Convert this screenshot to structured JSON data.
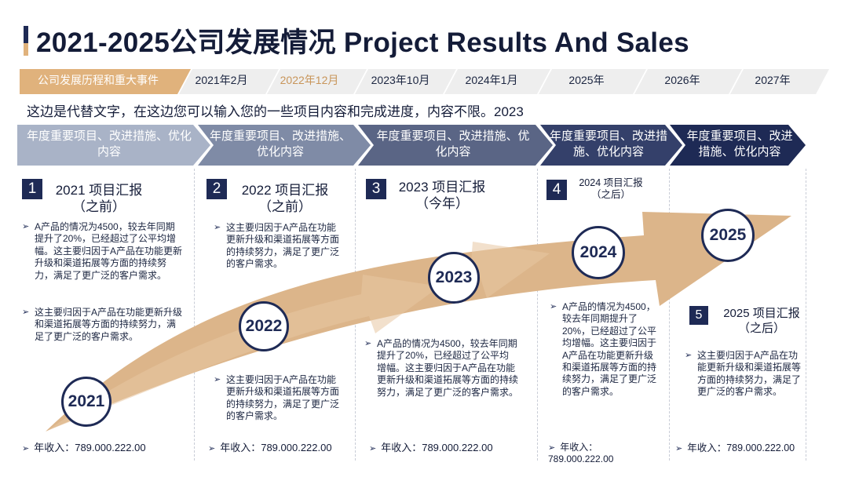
{
  "title": "2021-2025公司发展情况 Project Results And Sales",
  "timeline": {
    "label": "公司发展历程和重大事件",
    "tabs": [
      "2021年2月",
      "2022年12月",
      "2023年10月",
      "2024年1月",
      "2025年",
      "2026年",
      "2027年"
    ]
  },
  "intro": "这边是代替文字，在这边您可以输入您的一些项目内容和完成进度，内容不限。2023",
  "colors": {
    "navy": "#1e2a55",
    "accent": "#e0b27c",
    "arrow": "#dcb58a",
    "active_tab": "#c8955a"
  },
  "columns": [
    {
      "header": "年度重要项目、改进措施、优化内容",
      "num": "1",
      "head1": "2021 项目汇报",
      "head2": "（之前）",
      "bullets": [
        "A产品的情况为4500，较去年同期提升了20%，已经超过了公平均增幅。这主要归因于A产品在功能更新升级和渠道拓展等方面的持续努力，满足了更广泛的客户需求。",
        "这主要归因于A产品在功能更新升级和渠道拓展等方面的持续努力，满足了更广泛的客户需求。"
      ],
      "income": "年收入：789.000.222.00"
    },
    {
      "header": "年度重要项目、改进措施、优化内容",
      "num": "2",
      "head1": "2022 项目汇报",
      "head2": "（之前）",
      "bullets": [
        "这主要归因于A产品在功能更新升级和渠道拓展等方面的持续努力，满足了更广泛的客户需求。",
        "这主要归因于A产品在功能更新升级和渠道拓展等方面的持续努力，满足了更广泛的客户需求。"
      ],
      "income": "年收入：789.000.222.00"
    },
    {
      "header": "年度重要项目、改进措施、优化内容",
      "num": "3",
      "head1": "2023 项目汇报",
      "head2": "（今年）",
      "bullets": [
        "A产品的情况为4500，较去年同期提升了20%，已经超过了公平均增幅。这主要归因于A产品在功能更新升级和渠道拓展等方面的持续努力，满足了更广泛的客户需求。"
      ],
      "income": "年收入：789.000.222.00"
    },
    {
      "header": "年度重要项目、改进措施、优化内容",
      "num": "4",
      "head1": "2024 项目汇报",
      "head2": "（之后）",
      "bullets": [
        "A产品的情况为4500，较去年同期提升了20%，已经超过了公平均增幅。这主要归因于A产品在功能更新升级和渠道拓展等方面的持续努力，满足了更广泛的客户需求。"
      ],
      "income": "年收入：789.000.222.00"
    },
    {
      "header": "年度重要项目、改进措施、优化内容",
      "num": "5",
      "head1": "2025 项目汇报",
      "head2": "（之后）",
      "bullets": [
        "这主要归因于A产品在功能更新升级和渠道拓展等方面的持续努力，满足了更广泛的客户需求。"
      ],
      "income": "年收入：789.000.222.00"
    }
  ],
  "years": [
    "2021",
    "2022",
    "2023",
    "2024",
    "2025"
  ]
}
